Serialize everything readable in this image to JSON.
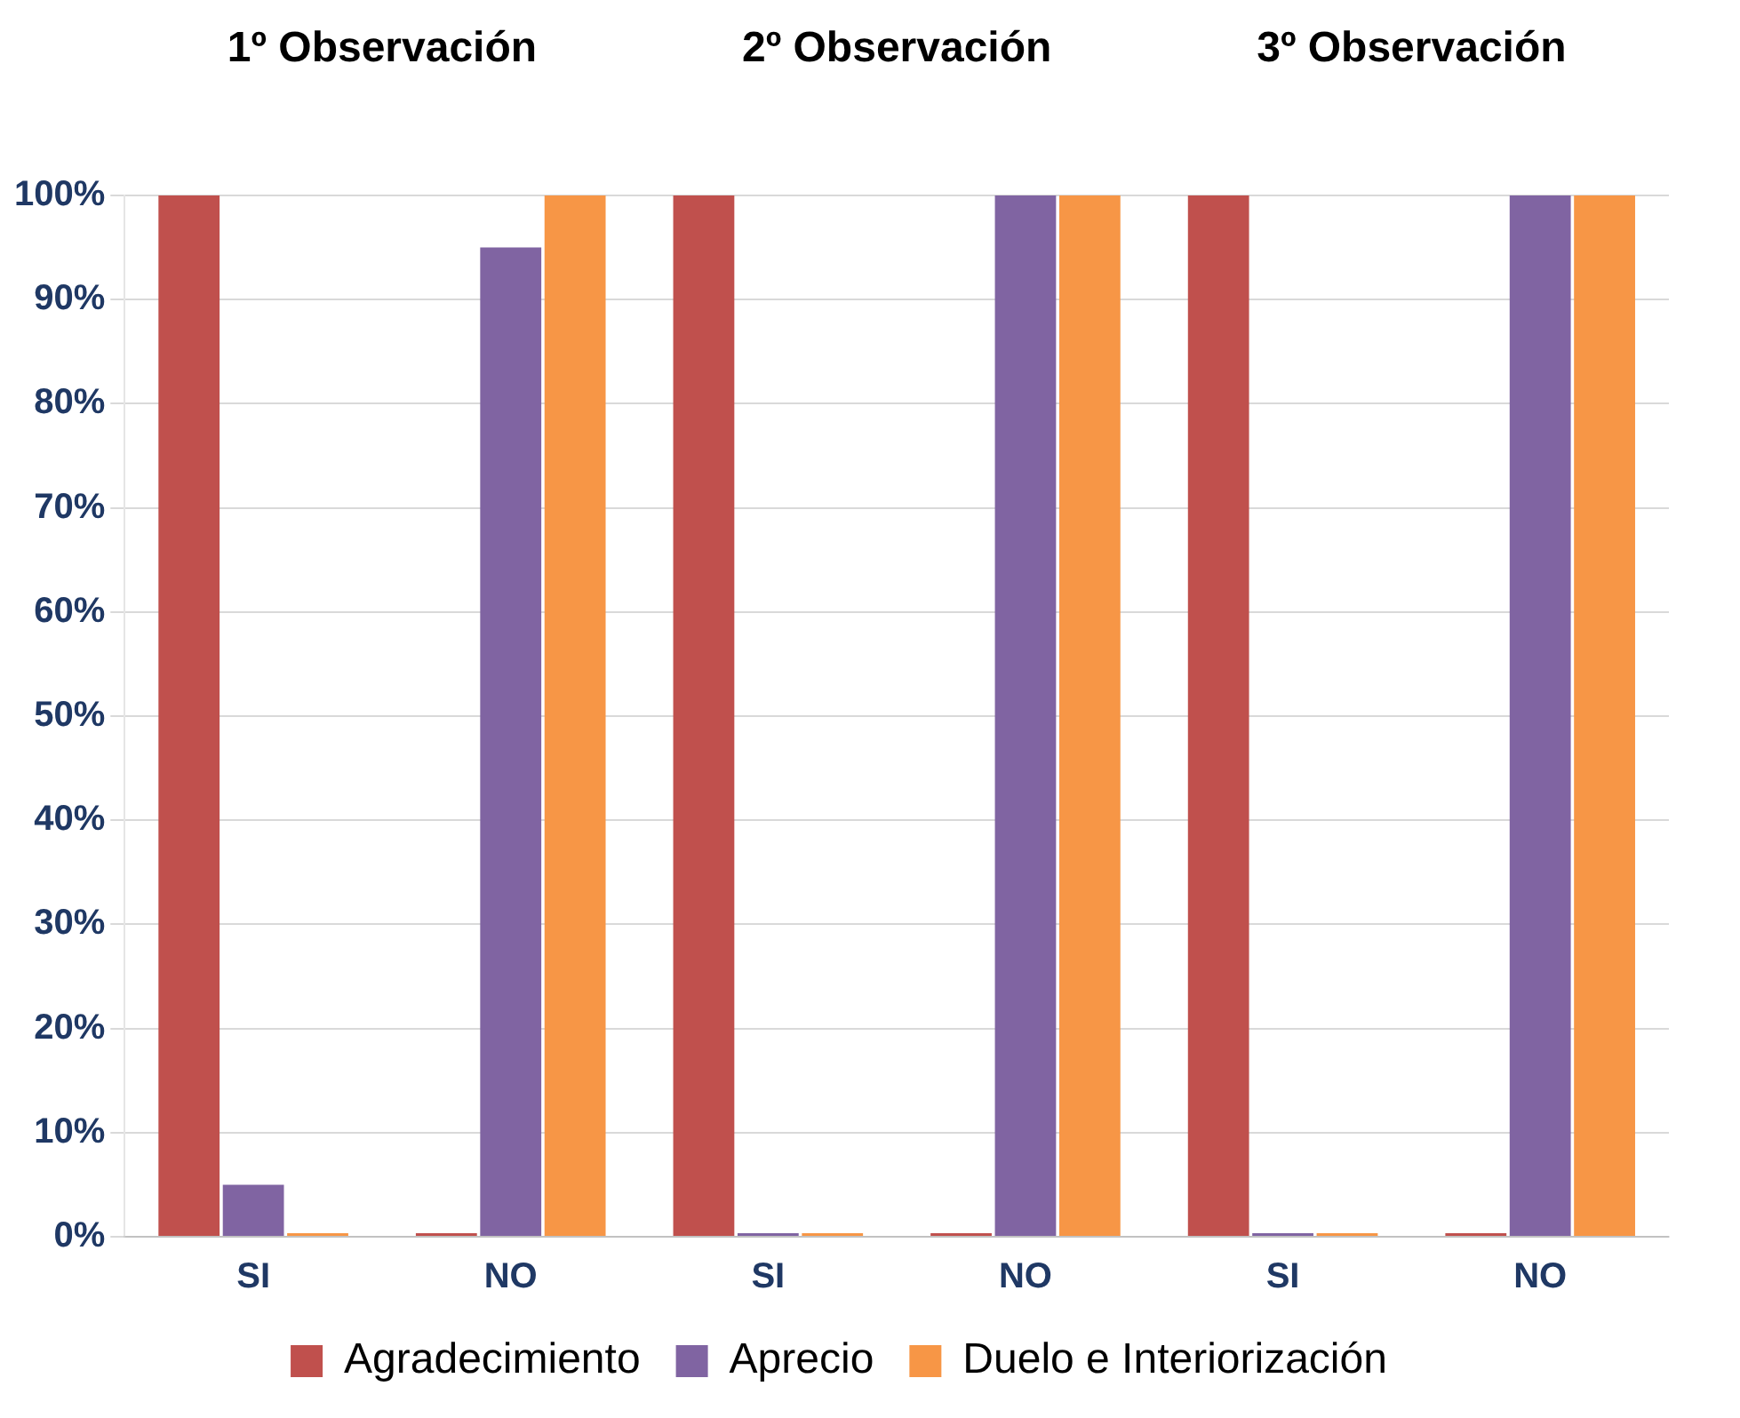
{
  "chart_data": {
    "type": "bar",
    "categories": [
      "SI",
      "NO",
      "SI",
      "NO",
      "SI",
      "NO"
    ],
    "series": [
      {
        "name": "Agradecimiento",
        "color": "#c0504d",
        "values": [
          100,
          0,
          100,
          0,
          100,
          0
        ]
      },
      {
        "name": "Aprecio",
        "color": "#8064a2",
        "values": [
          5,
          95,
          0,
          100,
          0,
          100
        ]
      },
      {
        "name": "Duelo e Interiorización",
        "color": "#f79646",
        "values": [
          0,
          100,
          0,
          100,
          0,
          100
        ]
      }
    ],
    "ylim": [
      0,
      100
    ],
    "yticks": [
      {
        "value": 0,
        "label": "0%"
      },
      {
        "value": 10,
        "label": "10%"
      },
      {
        "value": 20,
        "label": "20%"
      },
      {
        "value": 30,
        "label": "30%"
      },
      {
        "value": 40,
        "label": "40%"
      },
      {
        "value": 50,
        "label": "50%"
      },
      {
        "value": 60,
        "label": "60%"
      },
      {
        "value": 70,
        "label": "70%"
      },
      {
        "value": 80,
        "label": "80%"
      },
      {
        "value": 90,
        "label": "90%"
      },
      {
        "value": 100,
        "label": "100%"
      }
    ],
    "annotations": [
      "1º Observación",
      "2º Observación",
      "3º Observación"
    ],
    "grid": "y",
    "legend": "bottom"
  }
}
